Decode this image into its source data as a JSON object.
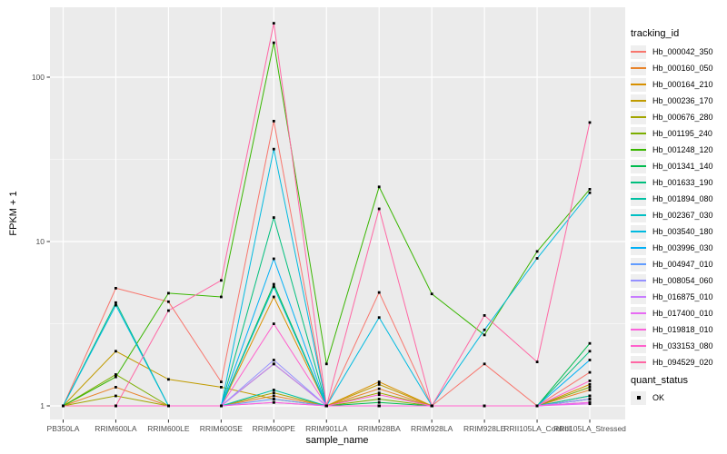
{
  "chart_data": {
    "type": "line",
    "title": "",
    "xlabel": "sample_name",
    "ylabel": "FPKM + 1",
    "x_scale": "discrete",
    "y_scale": "log10",
    "y_ticks": [
      1,
      10,
      100
    ],
    "ylim": [
      0.93,
      260
    ],
    "grid": true,
    "legend_position": "right",
    "legend_title": "tracking_id",
    "legend2_title": "quant_status",
    "quant_status_value": "OK",
    "panel_bg": "#EBEBEB",
    "grid_color": "#FFFFFF",
    "tick_label_color": "#4D4D4D",
    "point_color": "#000000",
    "categories": [
      "PB350LA",
      "RRIM600LA",
      "RRIM600LE",
      "RRIM600SE",
      "RRIM600PE",
      "RRIM901LA",
      "RRIM928BA",
      "RRIM928LA",
      "RRIM928LE",
      "RRII105LA_Control",
      "RRII105LA_Stressed"
    ],
    "series": [
      {
        "name": "Hb_000042_350",
        "color": "#F8766D",
        "values": [
          1,
          5.2,
          4.3,
          1.4,
          54,
          1,
          4.9,
          1,
          1.8,
          1,
          1.6
        ]
      },
      {
        "name": "Hb_000160_050",
        "color": "#E8842C",
        "values": [
          1,
          1.3,
          1,
          1,
          1.15,
          1,
          1.27,
          1,
          1,
          1,
          1.25
        ]
      },
      {
        "name": "Hb_000164_210",
        "color": "#D89000",
        "values": [
          1,
          1,
          1,
          1,
          4.6,
          1,
          1.4,
          1,
          1,
          1,
          1.35
        ]
      },
      {
        "name": "Hb_000236_170",
        "color": "#C09B00",
        "values": [
          1,
          2.15,
          1.45,
          1.3,
          1.1,
          1,
          1.35,
          1,
          1,
          1,
          1.15
        ]
      },
      {
        "name": "Hb_000676_280",
        "color": "#A3A500",
        "values": [
          1,
          1.15,
          1,
          1,
          1.2,
          1,
          1.2,
          1,
          1,
          1,
          1.1
        ]
      },
      {
        "name": "Hb_001195_240",
        "color": "#7CAE00",
        "values": [
          1,
          1.55,
          1,
          1,
          1.8,
          1,
          1.1,
          1,
          1,
          1,
          1.3
        ]
      },
      {
        "name": "Hb_001248_120",
        "color": "#39B600",
        "values": [
          1,
          1.5,
          4.85,
          4.6,
          162,
          1.8,
          21.5,
          4.8,
          2.7,
          8.7,
          20.8
        ]
      },
      {
        "name": "Hb_001341_140",
        "color": "#00BB4E",
        "values": [
          1,
          1,
          1,
          1,
          5.5,
          1,
          1.05,
          1,
          1,
          1,
          2.4
        ]
      },
      {
        "name": "Hb_001633_190",
        "color": "#00BF7D",
        "values": [
          1,
          4.25,
          1,
          1,
          14,
          1,
          1,
          1,
          1,
          1,
          2.15
        ]
      },
      {
        "name": "Hb_001894_080",
        "color": "#00C1A3",
        "values": [
          1,
          1,
          1,
          1,
          1.25,
          1,
          1,
          1,
          1,
          1,
          1.15
        ]
      },
      {
        "name": "Hb_002367_030",
        "color": "#00BFC4",
        "values": [
          1,
          1,
          1,
          1,
          5.3,
          1,
          1,
          1,
          1,
          1,
          1.1
        ]
      },
      {
        "name": "Hb_003540_180",
        "color": "#00BAE0",
        "values": [
          1,
          4.1,
          1,
          1,
          36.5,
          1,
          3.45,
          1,
          2.9,
          7.9,
          19.8
        ]
      },
      {
        "name": "Hb_003996_030",
        "color": "#00B0F6",
        "values": [
          1,
          1,
          1,
          1,
          7.85,
          1,
          1,
          1,
          1,
          1,
          1.9
        ]
      },
      {
        "name": "Hb_004947_010",
        "color": "#619CFF",
        "values": [
          1,
          1,
          1,
          1,
          1.1,
          1,
          1,
          1,
          1,
          1,
          1.05
        ]
      },
      {
        "name": "Hb_008054_060",
        "color": "#9590FF",
        "values": [
          1,
          1,
          1,
          1,
          1.9,
          1,
          1,
          1,
          1,
          1,
          1.1
        ]
      },
      {
        "name": "Hb_016875_010",
        "color": "#C77CFF",
        "values": [
          1,
          1,
          1,
          1,
          1.8,
          1,
          1,
          1,
          1,
          1,
          1.05
        ]
      },
      {
        "name": "Hb_017400_010",
        "color": "#E76BF3",
        "values": [
          1,
          1,
          1,
          1,
          1.05,
          1,
          1,
          1,
          1,
          1,
          1.03
        ]
      },
      {
        "name": "Hb_019818_010",
        "color": "#FA62DB",
        "values": [
          1,
          1,
          1,
          1,
          1.05,
          1,
          1,
          1,
          1,
          1,
          1.05
        ]
      },
      {
        "name": "Hb_033153_080",
        "color": "#FF61CC",
        "values": [
          1,
          1,
          1,
          1,
          3.16,
          1,
          1.17,
          1,
          1,
          1,
          1.42
        ]
      },
      {
        "name": "Hb_094529_020",
        "color": "#FF67A4",
        "values": [
          1,
          1,
          3.8,
          5.8,
          213,
          1,
          15.8,
          1,
          3.55,
          1.85,
          53
        ]
      }
    ]
  }
}
